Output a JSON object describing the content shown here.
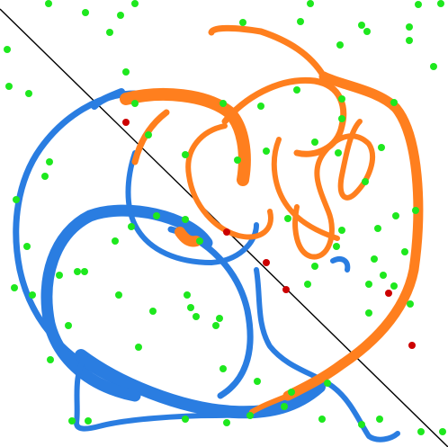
{
  "scene": {
    "colors": {
      "background": "#ffffff",
      "blue_curve": "#2a7de1",
      "orange_curve": "#ff7f1e",
      "diagonal_line": "#000000",
      "green_dot": "#1ee81e",
      "red_dot": "#cc0000"
    },
    "note_elements": [
      "diagonal-line",
      "blue-curve",
      "orange-curve",
      "green-dots",
      "red-dots"
    ]
  }
}
